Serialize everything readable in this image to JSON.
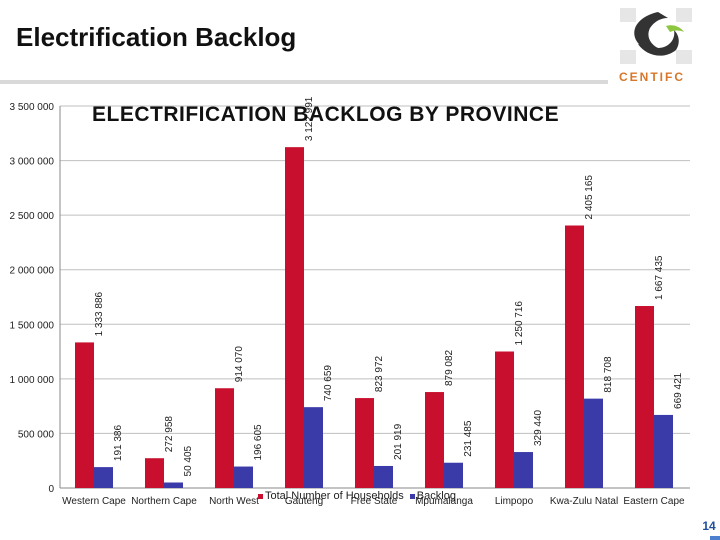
{
  "slide": {
    "title": "Electrification Backlog",
    "page_number": "14",
    "logo_text": "CENTIFC"
  },
  "colors": {
    "total_households": "#c8102e",
    "backlog": "#3a3aa8",
    "gridline": "#bfbfbf"
  },
  "chart_data": {
    "type": "bar",
    "title": "ELECTRIFICATION BACKLOG BY PROVINCE",
    "categories": [
      "Western Cape",
      "Northern Cape",
      "North West",
      "Gauteng",
      "Free State",
      "Mpumalanga",
      "Limpopo",
      "Kwa-Zulu Natal",
      "Eastern Cape"
    ],
    "series": [
      {
        "name": "Total Number of Households",
        "values": [
          1333886,
          272958,
          914070,
          3122991,
          823972,
          879082,
          1250716,
          2405165,
          1667435
        ]
      },
      {
        "name": "Backlog",
        "values": [
          191386,
          50405,
          196605,
          740659,
          201919,
          231485,
          329440,
          818708,
          669421
        ]
      }
    ],
    "value_labels": [
      [
        "1 333 886",
        "272 958",
        "914 070",
        "3 122 991",
        "823 972",
        "879 082",
        "1 250 716",
        "2 405 165",
        "1 667 435"
      ],
      [
        "191 386",
        "50 405",
        "196 605",
        "740 659",
        "201 919",
        "231 485",
        "329 440",
        "818 708",
        "669 421"
      ]
    ],
    "y_ticks": [
      0,
      500000,
      1000000,
      1500000,
      2000000,
      2500000,
      3000000,
      3500000
    ],
    "y_tick_labels": [
      "0",
      "500 000",
      "1 000 000",
      "1 500 000",
      "2 000 000",
      "2 500 000",
      "3 000 000",
      "3 500 000"
    ],
    "ylim": [
      0,
      3500000
    ],
    "grid": true,
    "legend_position": "bottom"
  }
}
